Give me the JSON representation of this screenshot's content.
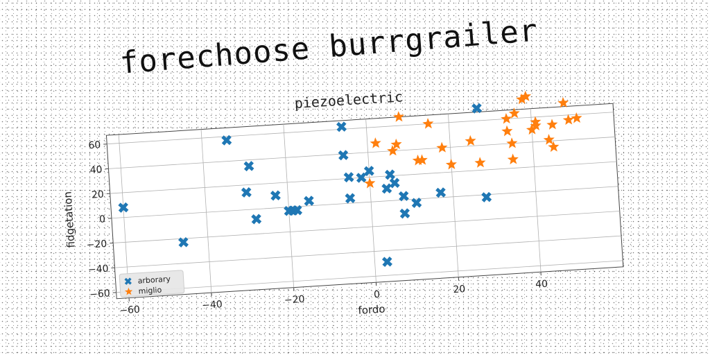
{
  "chart_data": {
    "type": "scatter",
    "title": "forechoose burrgrailer",
    "subtitle": "piezoelectric",
    "xlabel": "fordo",
    "ylabel": "fidgetation",
    "xlim": [
      -63,
      60
    ],
    "ylim": [
      -65,
      67
    ],
    "xticks": [
      -60,
      -40,
      -20,
      0,
      20,
      40
    ],
    "yticks": [
      -60,
      -40,
      -20,
      0,
      20,
      40,
      60
    ],
    "grid": true,
    "legend_position": "bottom-left",
    "series": [
      {
        "name": "arborary",
        "marker": "x",
        "color": "#1f77b4",
        "points": [
          [
            -60,
            8
          ],
          [
            -46,
            -23
          ],
          [
            -34,
            57
          ],
          [
            -30,
            14
          ],
          [
            -29,
            35
          ],
          [
            -28,
            -8
          ],
          [
            -23,
            10
          ],
          [
            -20,
            -3
          ],
          [
            -19,
            -3
          ],
          [
            -18,
            -3
          ],
          [
            -15,
            4
          ],
          [
            -6,
            62
          ],
          [
            -6,
            39
          ],
          [
            -5,
            21
          ],
          [
            -5,
            4
          ],
          [
            -2,
            20
          ],
          [
            0,
            25
          ],
          [
            3,
            -49
          ],
          [
            4,
            10
          ],
          [
            5,
            21
          ],
          [
            6,
            14
          ],
          [
            8,
            3
          ],
          [
            8,
            -11
          ],
          [
            11,
            -3
          ],
          [
            17,
            4
          ],
          [
            27,
            70
          ],
          [
            28,
            -2
          ]
        ]
      },
      {
        "name": "miglio",
        "marker": "*",
        "color": "#ff7f0e",
        "points": [
          [
            0,
            15
          ],
          [
            2,
            47
          ],
          [
            6,
            40
          ],
          [
            7,
            45
          ],
          [
            8,
            67
          ],
          [
            12,
            31
          ],
          [
            13,
            31
          ],
          [
            15,
            60
          ],
          [
            18,
            40
          ],
          [
            20,
            26
          ],
          [
            25,
            44
          ],
          [
            27,
            26
          ],
          [
            34,
            60
          ],
          [
            34,
            50
          ],
          [
            35,
            40
          ],
          [
            35,
            27
          ],
          [
            36,
            64
          ],
          [
            38,
            75
          ],
          [
            39,
            77
          ],
          [
            40,
            50
          ],
          [
            41,
            56
          ],
          [
            41,
            53
          ],
          [
            44,
            41
          ],
          [
            45,
            53
          ],
          [
            45,
            35
          ],
          [
            48,
            70
          ],
          [
            49,
            56
          ],
          [
            51,
            57
          ]
        ]
      }
    ]
  }
}
